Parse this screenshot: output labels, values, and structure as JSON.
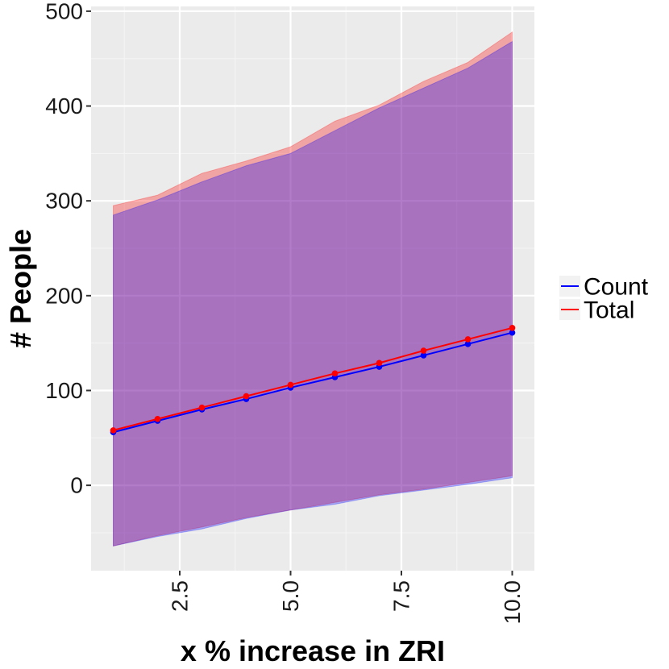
{
  "chart_data": {
    "type": "line",
    "title": "",
    "xlabel": "x % increase in ZRI",
    "ylabel": "# People",
    "xlim": [
      0.5,
      10.5
    ],
    "ylim": [
      -90,
      505
    ],
    "x_ticks": [
      2.5,
      5.0,
      7.5,
      10.0
    ],
    "x_tick_labels": [
      "2.5",
      "5.0",
      "7.5",
      "10.0"
    ],
    "y_ticks": [
      0,
      100,
      200,
      300,
      400,
      500
    ],
    "y_tick_labels": [
      "0",
      "100",
      "200",
      "300",
      "400",
      "500"
    ],
    "grid": true,
    "legend_position": "right",
    "x": [
      1,
      2,
      3,
      4,
      5,
      6,
      7,
      8,
      9,
      10
    ],
    "series": [
      {
        "name": "Count",
        "color": "#0000ff",
        "values": [
          56,
          68,
          80,
          91,
          103,
          114,
          125,
          137,
          149,
          161
        ],
        "lower": [
          -64,
          -54,
          -46,
          -35,
          -26,
          -20,
          -11,
          -5,
          1,
          8
        ],
        "upper": [
          285,
          301,
          320,
          337,
          350,
          374,
          398,
          419,
          440,
          468
        ]
      },
      {
        "name": "Total",
        "color": "#ff0000",
        "values": [
          58,
          70,
          82,
          94,
          106,
          118,
          129,
          142,
          154,
          166
        ],
        "lower": [
          -64,
          -53,
          -44,
          -34,
          -26,
          -18,
          -10,
          -4,
          3,
          10
        ],
        "upper": [
          295,
          306,
          329,
          342,
          357,
          384,
          401,
          426,
          446,
          478
        ]
      }
    ]
  }
}
